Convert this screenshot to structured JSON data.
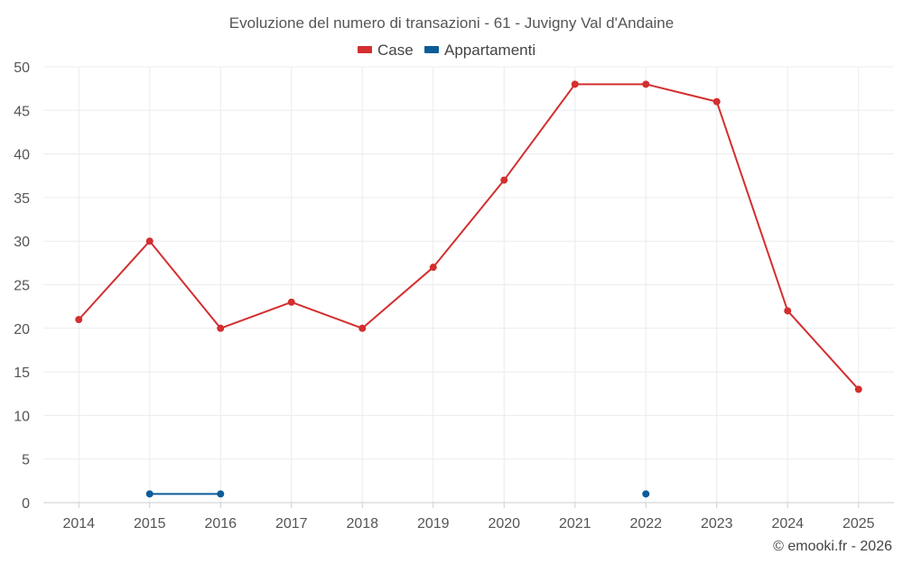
{
  "chart_data": {
    "type": "line",
    "title": "Evoluzione del numero di transazioni - 61 - Juvigny Val d'Andaine",
    "categories": [
      "2014",
      "2015",
      "2016",
      "2017",
      "2018",
      "2019",
      "2020",
      "2021",
      "2022",
      "2023",
      "2024",
      "2025"
    ],
    "series": [
      {
        "name": "Case",
        "color": "#d32f2f",
        "values": [
          21,
          30,
          20,
          23,
          20,
          27,
          37,
          48,
          48,
          46,
          22,
          13
        ]
      },
      {
        "name": "Appartamenti",
        "color": "#0b5c9a",
        "values": [
          null,
          1,
          1,
          null,
          null,
          null,
          null,
          null,
          1,
          null,
          null,
          null
        ]
      }
    ],
    "ylim": [
      0,
      50
    ],
    "yticks": [
      0,
      5,
      10,
      15,
      20,
      25,
      30,
      35,
      40,
      45,
      50
    ],
    "grid": true,
    "legend": "top-center",
    "xlabel": "",
    "ylabel": ""
  },
  "credit": "© emooki.fr - 2026"
}
